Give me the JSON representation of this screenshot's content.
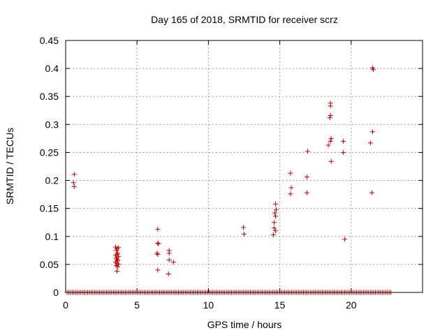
{
  "chart_data": {
    "type": "scatter",
    "title": "Day 165 of 2018, SRMTID for receiver scrz",
    "xlabel": "GPS time / hours",
    "ylabel": "SRMTID / TECUs",
    "xlim": [
      0,
      25
    ],
    "ylim": [
      0,
      0.45
    ],
    "xticks": [
      0,
      5,
      10,
      15,
      20
    ],
    "yticks": [
      0,
      0.05,
      0.1,
      0.15,
      0.2,
      0.25,
      0.3,
      0.35,
      0.4,
      0.45
    ],
    "xtick_labels": [
      "0",
      "5",
      "10",
      "15",
      "20"
    ],
    "ytick_labels": [
      "0",
      "0.05",
      "0.1",
      "0.15",
      "0.2",
      "0.25",
      "0.3",
      "0.35",
      "0.4",
      "0.45"
    ],
    "grid": true,
    "marker": "+",
    "color": "#cc0000",
    "baseline": {
      "y": 0,
      "x_start": 0.1,
      "x_end": 22.8,
      "step": 0.12
    },
    "series": [
      {
        "name": "SRMTID",
        "points": [
          [
            0.6,
            0.211
          ],
          [
            0.55,
            0.196
          ],
          [
            0.6,
            0.189
          ],
          [
            3.5,
            0.081
          ],
          [
            3.6,
            0.078
          ],
          [
            3.7,
            0.08
          ],
          [
            3.55,
            0.075
          ],
          [
            3.65,
            0.07
          ],
          [
            3.5,
            0.066
          ],
          [
            3.6,
            0.068
          ],
          [
            3.7,
            0.064
          ],
          [
            3.55,
            0.06
          ],
          [
            3.65,
            0.058
          ],
          [
            3.5,
            0.054
          ],
          [
            3.6,
            0.052
          ],
          [
            3.7,
            0.05
          ],
          [
            3.55,
            0.048
          ],
          [
            3.65,
            0.046
          ],
          [
            3.6,
            0.038
          ],
          [
            3.58,
            0.062
          ],
          [
            3.62,
            0.056
          ],
          [
            6.45,
            0.113
          ],
          [
            6.45,
            0.088
          ],
          [
            6.5,
            0.087
          ],
          [
            6.4,
            0.07
          ],
          [
            6.45,
            0.068
          ],
          [
            6.45,
            0.04
          ],
          [
            7.25,
            0.075
          ],
          [
            7.25,
            0.07
          ],
          [
            7.25,
            0.058
          ],
          [
            7.55,
            0.054
          ],
          [
            7.2,
            0.033
          ],
          [
            12.45,
            0.116
          ],
          [
            12.5,
            0.104
          ],
          [
            14.7,
            0.158
          ],
          [
            14.75,
            0.148
          ],
          [
            14.65,
            0.142
          ],
          [
            14.7,
            0.136
          ],
          [
            14.6,
            0.125
          ],
          [
            14.6,
            0.115
          ],
          [
            14.7,
            0.11
          ],
          [
            14.55,
            0.103
          ],
          [
            15.75,
            0.213
          ],
          [
            15.8,
            0.187
          ],
          [
            15.75,
            0.176
          ],
          [
            16.95,
            0.252
          ],
          [
            16.9,
            0.206
          ],
          [
            16.9,
            0.178
          ],
          [
            18.55,
            0.338
          ],
          [
            18.55,
            0.333
          ],
          [
            18.55,
            0.316
          ],
          [
            18.5,
            0.312
          ],
          [
            18.6,
            0.275
          ],
          [
            18.55,
            0.27
          ],
          [
            18.4,
            0.263
          ],
          [
            18.6,
            0.234
          ],
          [
            19.45,
            0.27
          ],
          [
            19.45,
            0.25
          ],
          [
            19.55,
            0.095
          ],
          [
            21.5,
            0.401
          ],
          [
            21.55,
            0.398
          ],
          [
            21.5,
            0.287
          ],
          [
            21.35,
            0.267
          ],
          [
            21.45,
            0.178
          ]
        ]
      }
    ]
  }
}
